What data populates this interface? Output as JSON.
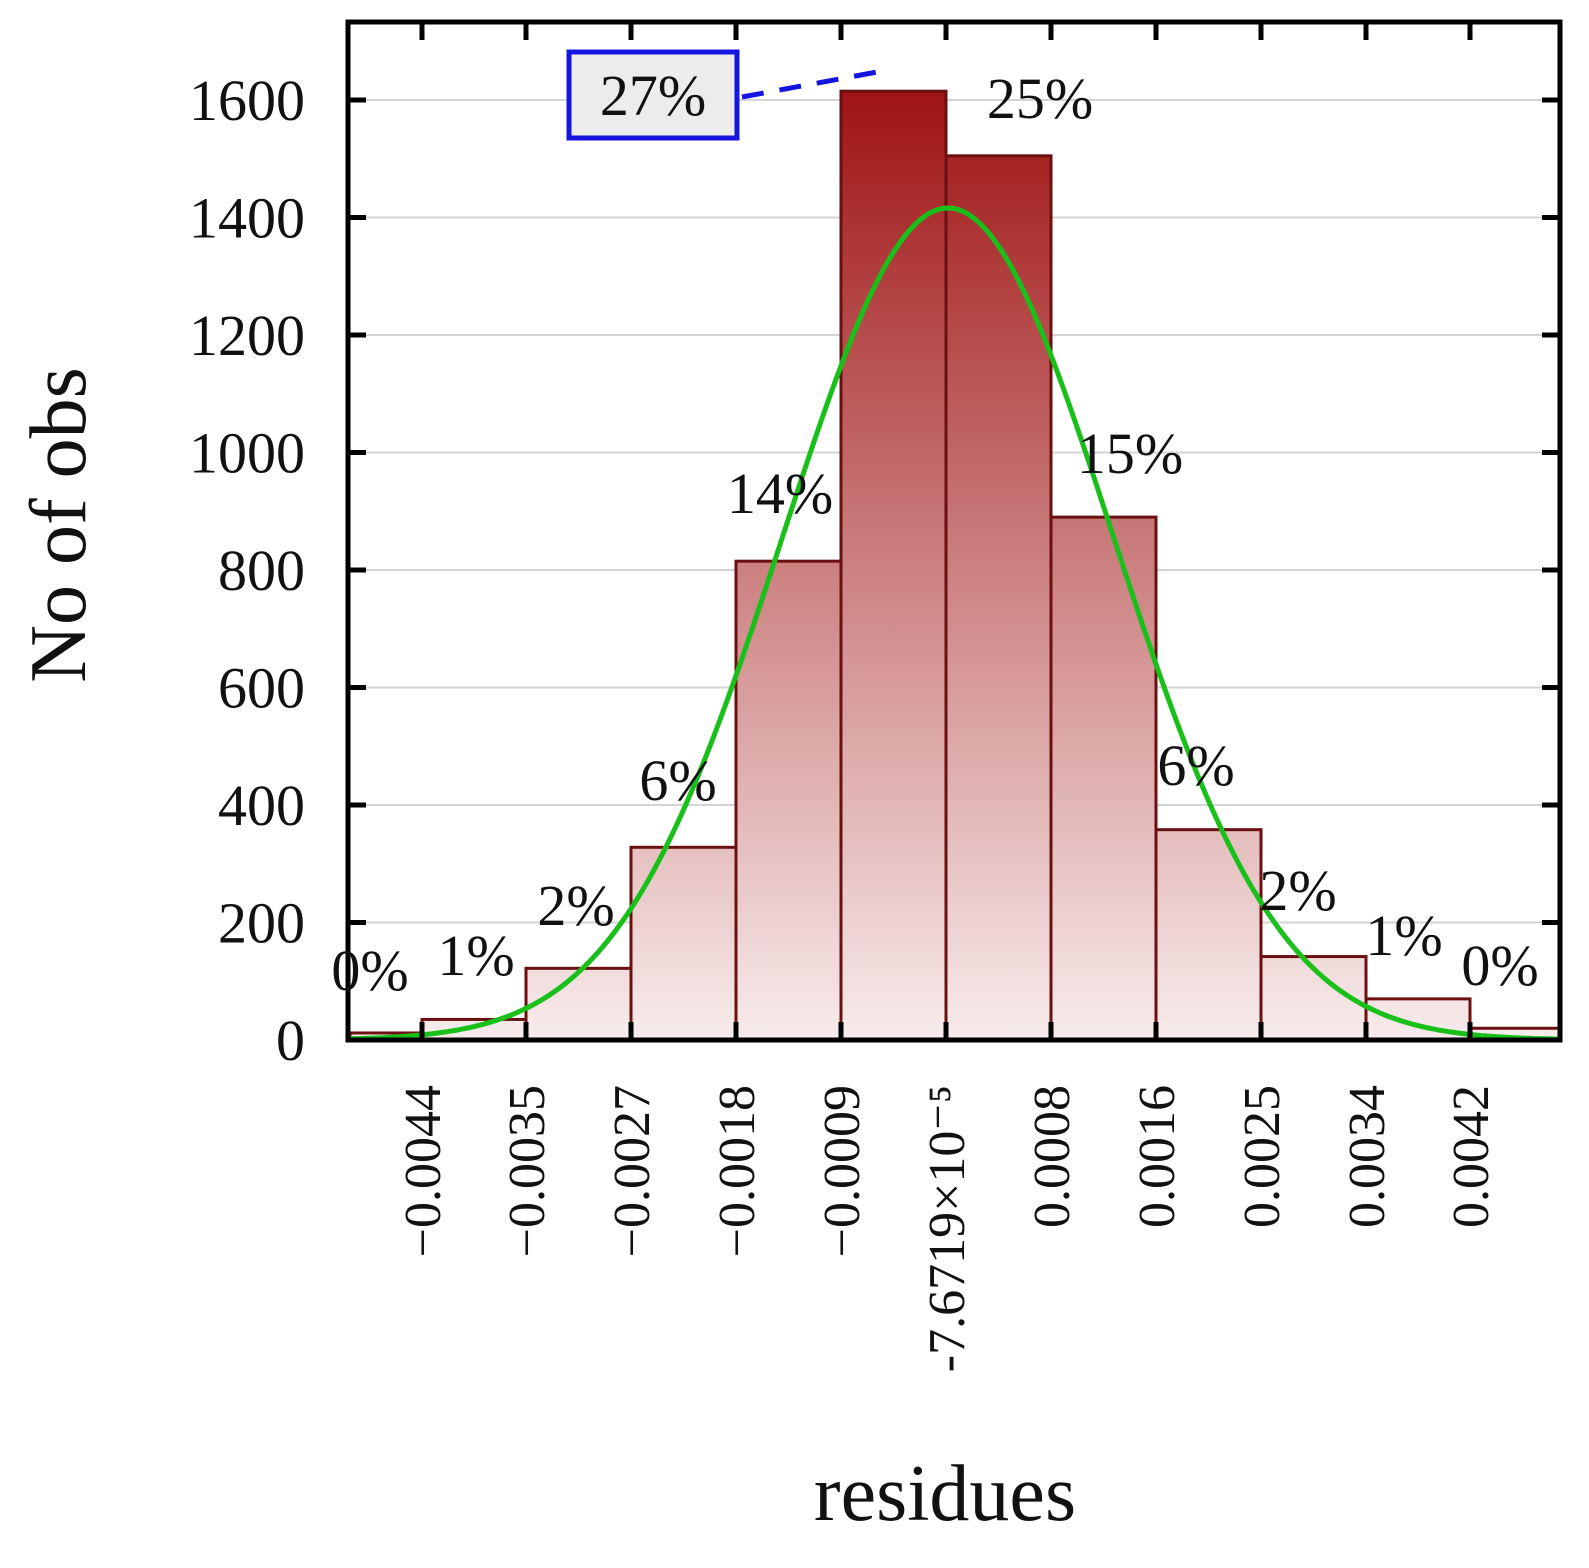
{
  "chart_data": {
    "type": "bar",
    "xlabel": "residues",
    "ylabel": "No of obs",
    "ylim": [
      0,
      1700
    ],
    "yticks": [
      "0",
      "200",
      "400",
      "600",
      "800",
      "1000",
      "1200",
      "1400",
      "1600"
    ],
    "xticks": [
      "−0.0044",
      "−0.0035",
      "−0.0027",
      "−0.0018",
      "−0.0009",
      "-7.6719×10⁻⁵",
      "0.0008",
      "0.0016",
      "0.0025",
      "0.0034",
      "0.0042"
    ],
    "bins": [
      {
        "from": -0.00525,
        "to": -0.0044,
        "value": 12,
        "label": "0%"
      },
      {
        "from": -0.0044,
        "to": -0.0035,
        "value": 35,
        "label": "1%"
      },
      {
        "from": -0.0035,
        "to": -0.0027,
        "value": 122,
        "label": "2%"
      },
      {
        "from": -0.0027,
        "to": -0.0018,
        "value": 328,
        "label": "6%"
      },
      {
        "from": -0.0018,
        "to": -0.0009,
        "value": 815,
        "label": "14%"
      },
      {
        "from": -0.0009,
        "to": -7.67e-05,
        "value": 1615,
        "label": "27%",
        "highlighted": true
      },
      {
        "from": -7.67e-05,
        "to": 0.0008,
        "value": 1505,
        "label": "25%"
      },
      {
        "from": 0.0008,
        "to": 0.0016,
        "value": 890,
        "label": "15%"
      },
      {
        "from": 0.0016,
        "to": 0.0025,
        "value": 358,
        "label": "6%"
      },
      {
        "from": 0.0025,
        "to": 0.0034,
        "value": 142,
        "label": "2%"
      },
      {
        "from": 0.0034,
        "to": 0.0042,
        "value": 70,
        "label": "1%"
      },
      {
        "from": 0.0042,
        "to": 0.0051,
        "value": 20,
        "label": "0%"
      }
    ],
    "fit_curve": {
      "type": "normal",
      "peak_x": 0.0,
      "peak_value": 1390
    },
    "grid": true,
    "colors": {
      "bar_top": "#9e1010",
      "bar_bottom": "#f8ecec",
      "bar_edge": "#6b1010",
      "curve": "#19c019",
      "callout": "#1515e0"
    }
  }
}
